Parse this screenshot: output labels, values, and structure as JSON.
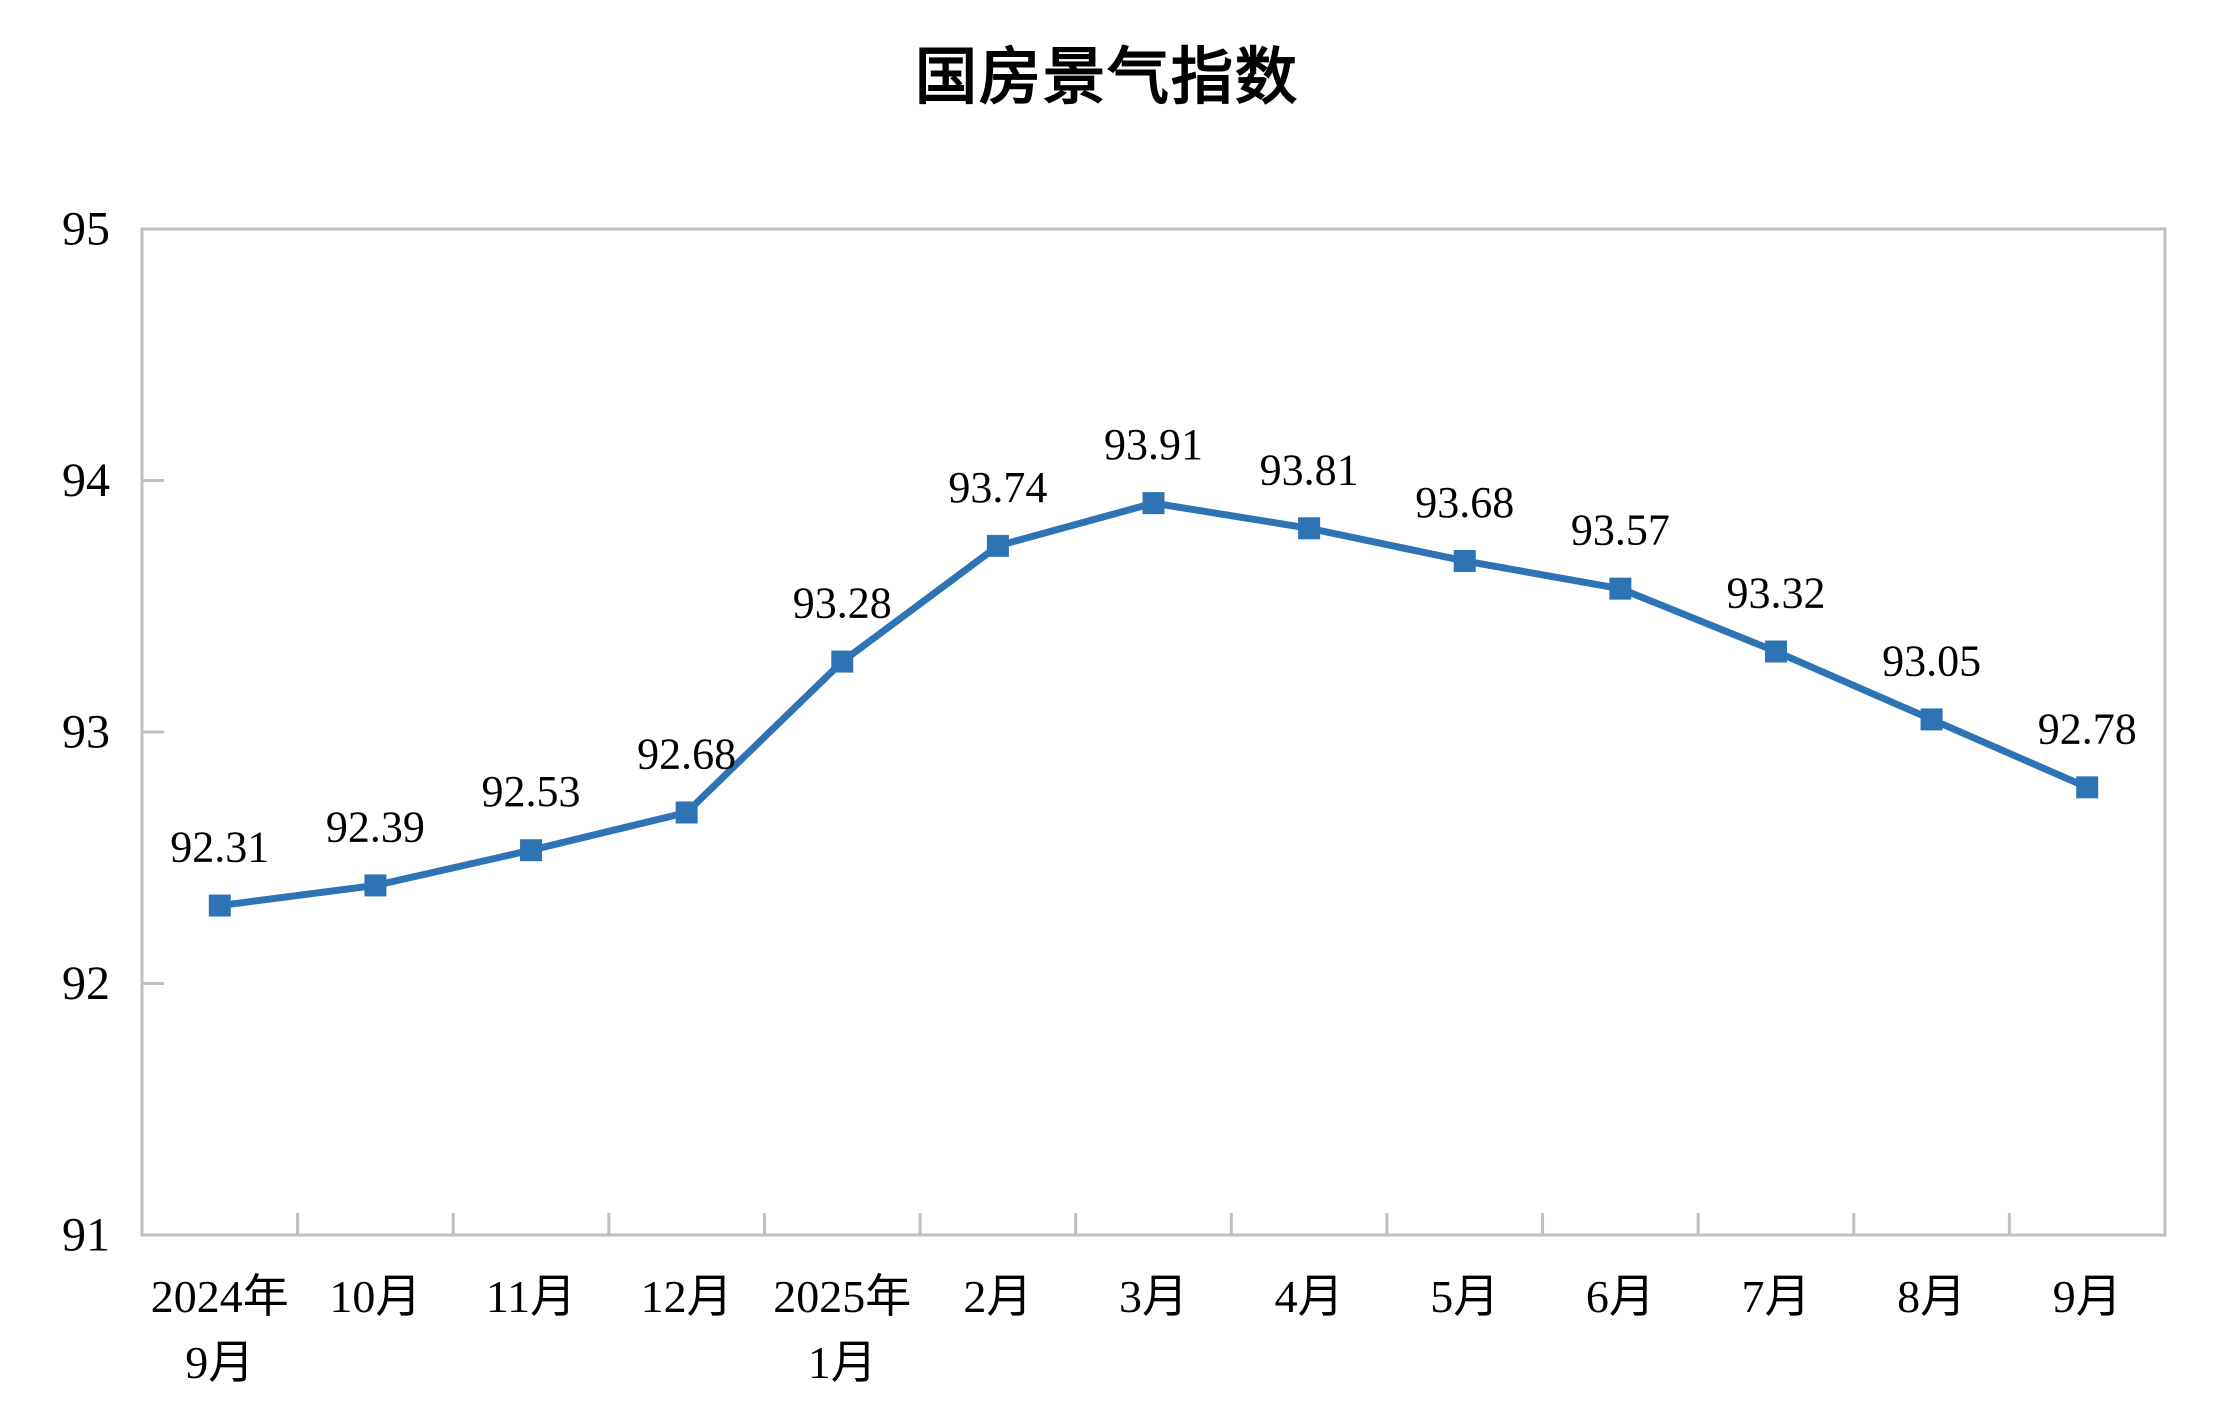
{
  "chart_data": {
    "type": "line",
    "title": "国房景气指数",
    "categories": [
      "2024年\n9月",
      "10月",
      "11月",
      "12月",
      "2025年\n1月",
      "2月",
      "3月",
      "4月",
      "5月",
      "6月",
      "7月",
      "8月",
      "9月"
    ],
    "values": [
      92.31,
      92.39,
      92.53,
      92.68,
      93.28,
      93.74,
      93.91,
      93.81,
      93.68,
      93.57,
      93.32,
      93.05,
      92.78
    ],
    "labels": [
      "92.31",
      "92.39",
      "92.53",
      "92.68",
      "93.28",
      "93.74",
      "93.91",
      "93.81",
      "93.68",
      "93.57",
      "93.32",
      "93.05",
      "92.78"
    ],
    "xlabel": "",
    "ylabel": "",
    "ylim": [
      91,
      95
    ],
    "y_ticks": [
      91,
      92,
      93,
      94,
      95
    ],
    "grid": false,
    "legend": "none",
    "marker": "square",
    "series_color": "#2E74B5",
    "axis_color": "#BFBFBF",
    "text_color": "#000000"
  }
}
